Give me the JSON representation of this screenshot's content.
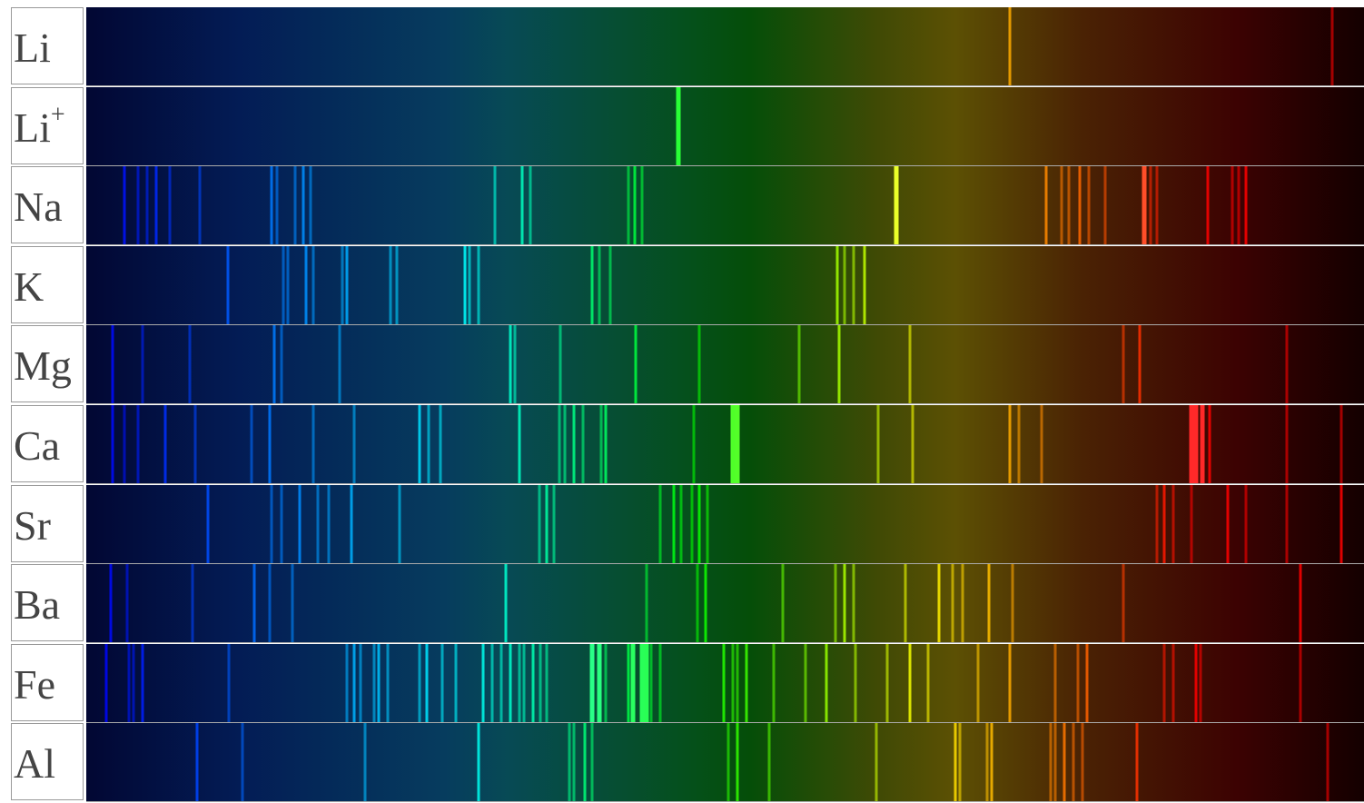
{
  "rows": [
    {
      "label": "Li"
    },
    {
      "label": "Li",
      "sup": "+"
    },
    {
      "label": "Na"
    },
    {
      "label": "K"
    },
    {
      "label": "Mg"
    },
    {
      "label": "Ca"
    },
    {
      "label": "Sr"
    },
    {
      "label": "Ba"
    },
    {
      "label": "Fe"
    },
    {
      "label": "Al"
    }
  ]
}
